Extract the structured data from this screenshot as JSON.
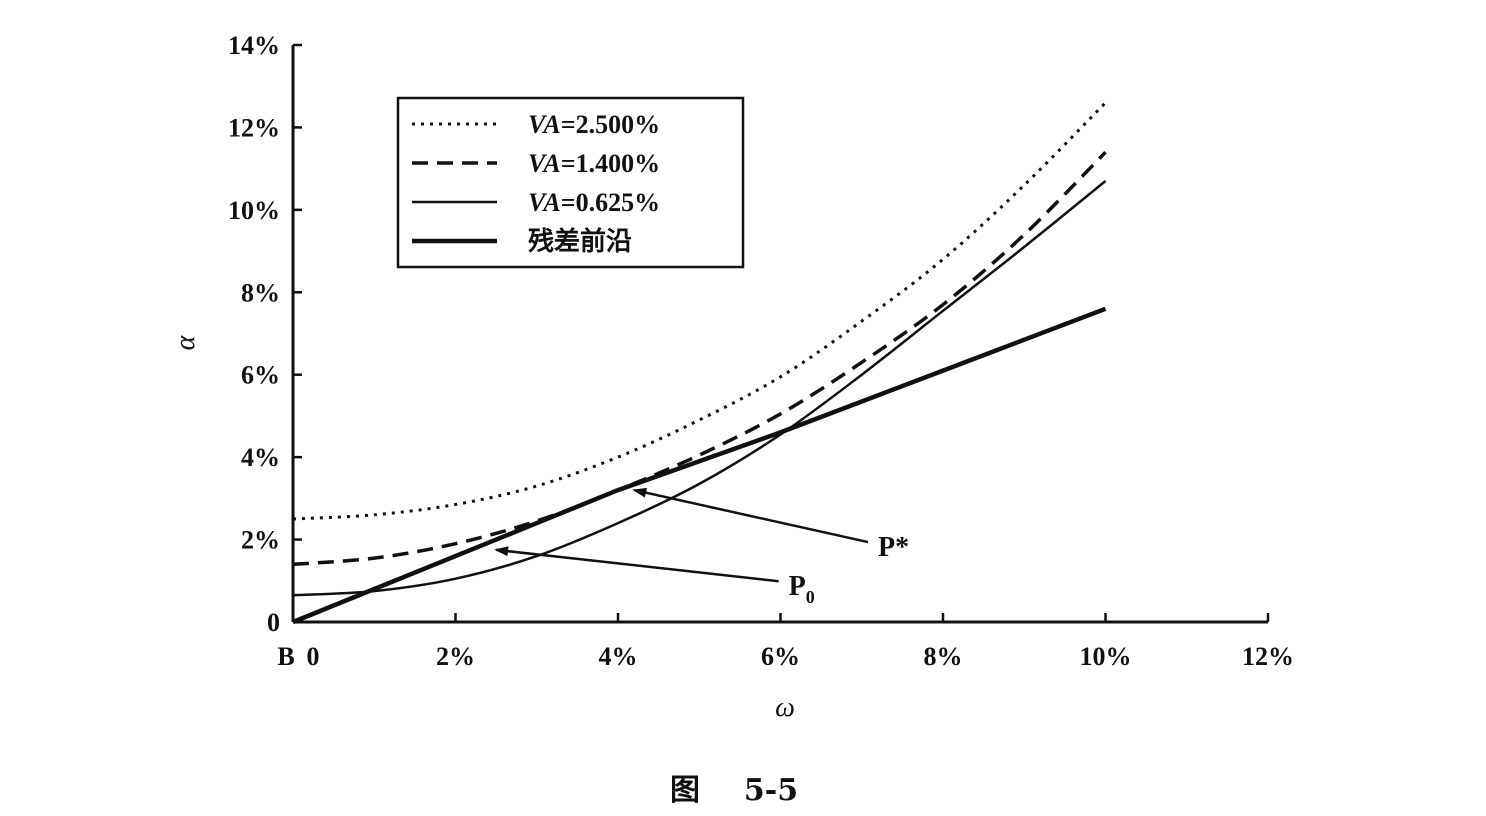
{
  "chart_data": {
    "type": "line",
    "title": "",
    "caption_prefix": "图",
    "caption_number": "5-5",
    "xlabel": "ω",
    "ylabel": "α",
    "xlim": [
      0,
      12
    ],
    "ylim": [
      0,
      14
    ],
    "x_ticks": [
      {
        "value": 0,
        "label": "0"
      },
      {
        "value": 2,
        "label": "2%"
      },
      {
        "value": 4,
        "label": "4%"
      },
      {
        "value": 6,
        "label": "6%"
      },
      {
        "value": 8,
        "label": "8%"
      },
      {
        "value": 10,
        "label": "10%"
      },
      {
        "value": 12,
        "label": "12%"
      }
    ],
    "y_ticks": [
      {
        "value": 0,
        "label": "0"
      },
      {
        "value": 2,
        "label": "2%"
      },
      {
        "value": 4,
        "label": "4%"
      },
      {
        "value": 6,
        "label": "6%"
      },
      {
        "value": 8,
        "label": "8%"
      },
      {
        "value": 10,
        "label": "10%"
      },
      {
        "value": 12,
        "label": "12%"
      },
      {
        "value": 14,
        "label": "14%"
      }
    ],
    "origin_label": "B",
    "legend_position": "top-left",
    "grid": false,
    "series": [
      {
        "name": "VA=2.500%",
        "name_italic": "VA",
        "name_rest": "=2.500%",
        "style": "dotted",
        "x": [
          0,
          1,
          2,
          3,
          4,
          5,
          6,
          7,
          8,
          9,
          10
        ],
        "y": [
          2.5,
          2.6,
          2.85,
          3.3,
          4.0,
          4.9,
          5.95,
          7.3,
          8.8,
          10.6,
          12.6
        ]
      },
      {
        "name": "VA=1.400%",
        "name_italic": "VA",
        "name_rest": "=1.400%",
        "style": "dashed",
        "x": [
          0,
          1,
          2,
          3,
          4,
          5,
          6,
          7,
          8,
          9,
          10
        ],
        "y": [
          1.4,
          1.55,
          1.9,
          2.45,
          3.2,
          4.05,
          5.05,
          6.3,
          7.7,
          9.4,
          11.4
        ]
      },
      {
        "name": "VA=0.625%",
        "name_italic": "VA",
        "name_rest": "=0.625%",
        "style": "solid-thin",
        "x": [
          0,
          1,
          2,
          3,
          4,
          5,
          6,
          7,
          8,
          9,
          10
        ],
        "y": [
          0.65,
          0.75,
          1.05,
          1.6,
          2.4,
          3.35,
          4.55,
          6.0,
          7.55,
          9.1,
          10.7
        ]
      },
      {
        "name": "残差前沿",
        "name_italic": "",
        "name_rest": "残差前沿",
        "style": "solid-thick",
        "x": [
          0,
          1,
          2,
          3,
          4,
          5,
          6,
          7,
          8,
          9,
          10
        ],
        "y": [
          0,
          0.8,
          1.6,
          2.4,
          3.2,
          3.9,
          4.6,
          5.35,
          6.1,
          6.85,
          7.6
        ]
      }
    ],
    "annotations": [
      {
        "text": "P*",
        "sub": "",
        "label_at": [
          7.2,
          1.6
        ],
        "arrow_to": [
          4.2,
          3.2
        ]
      },
      {
        "text": "P",
        "sub": "0",
        "label_at": [
          6.1,
          0.65
        ],
        "arrow_to": [
          2.5,
          1.75
        ]
      }
    ]
  }
}
